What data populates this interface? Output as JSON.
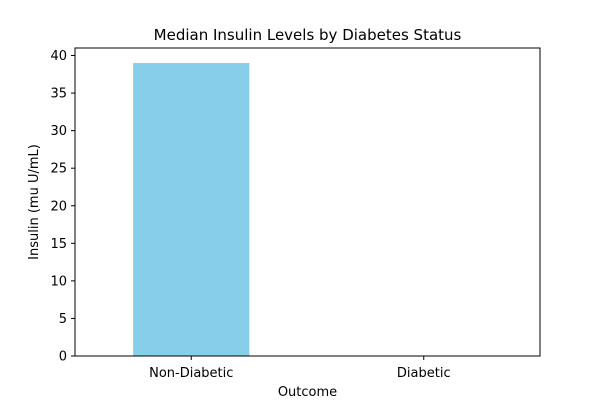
{
  "chart_data": {
    "type": "bar",
    "title": "Median Insulin Levels by Diabetes Status",
    "xlabel": "Outcome",
    "ylabel": "Insulin (mu U/mL)",
    "categories": [
      "Non-Diabetic",
      "Diabetic"
    ],
    "values": [
      39,
      0
    ],
    "ylim": [
      0,
      41
    ],
    "yticks": [
      0,
      5,
      10,
      15,
      20,
      25,
      30,
      35,
      40
    ],
    "grid": false,
    "legend": null,
    "bar_color": "#87ceeb"
  }
}
